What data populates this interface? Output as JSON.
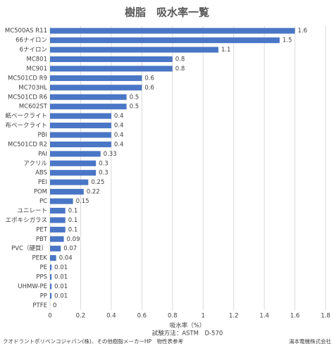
{
  "chart_data": {
    "type": "bar",
    "orientation": "horizontal",
    "title": "樹脂　吸水率一覧",
    "categories": [
      "MC500AS R11",
      "66ナイロン",
      "6ナイロン",
      "MC801",
      "MC901",
      "MC501CD R9",
      "MC703HL",
      "MC501CD R6",
      "MC602ST",
      "紙ベークライト",
      "布ベークライト",
      "PBI",
      "MC501CD R2",
      "PAI",
      "アクリル",
      "ABS",
      "PEI",
      "POM",
      "PC",
      "ユニレート",
      "エポキシガラス",
      "PET",
      "PBT",
      "PVC（硬質）",
      "PEEK",
      "PE",
      "PPS",
      "UHMW-PE",
      "PP",
      "PTFE"
    ],
    "values": [
      1.6,
      1.5,
      1.1,
      0.8,
      0.8,
      0.6,
      0.6,
      0.5,
      0.5,
      0.4,
      0.4,
      0.4,
      0.4,
      0.33,
      0.3,
      0.3,
      0.25,
      0.22,
      0.15,
      0.1,
      0.1,
      0.1,
      0.09,
      0.07,
      0.04,
      0.01,
      0.01,
      0.01,
      0.01,
      0
    ],
    "color": "#4a76c6",
    "xlim": [
      0,
      1.8
    ],
    "xticks": [
      0,
      0.2,
      0.4,
      0.6,
      0.8,
      1,
      1.2,
      1.4,
      1.6,
      1.8
    ],
    "grid": true,
    "x_label": "吸水率（%）",
    "note": "試験方法：ASTM　D-570",
    "footer_left": "クオドラントポリペンコジャパン(株)、その他樹脂メーカーHP　物性表参考",
    "footer_right": "湯本電機株式会社"
  }
}
